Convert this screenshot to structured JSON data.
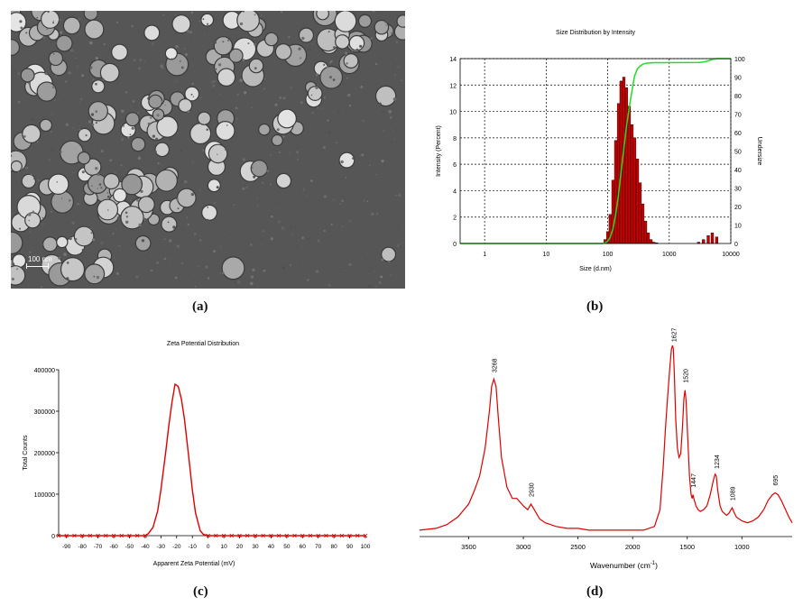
{
  "panels": {
    "a": {
      "label": "(a)",
      "scale_bar": "100 nm"
    },
    "b": {
      "label": "(b)"
    },
    "c": {
      "label": "(c)"
    },
    "d": {
      "label": "(d)"
    }
  },
  "chart_data": [
    {
      "id": "b",
      "type": "bar",
      "title": "Size Distribution by Intensity",
      "xlabel": "Size (d.nm)",
      "ylabel": "Intensity (Percent)",
      "y2label": "Undersize",
      "xscale": "log",
      "xlim": [
        0.4,
        10000
      ],
      "ylim": [
        0,
        14
      ],
      "y2lim": [
        0,
        100
      ],
      "x_ticks": [
        1,
        10,
        100,
        1000,
        10000
      ],
      "y_ticks": [
        0,
        2,
        4,
        6,
        8,
        10,
        12,
        14
      ],
      "y2_ticks": [
        0,
        10,
        20,
        30,
        40,
        50,
        60,
        70,
        80,
        90,
        100
      ],
      "grid": true,
      "bar_color": "#cc0000",
      "line_color": "#22dd22",
      "series": [
        {
          "kind": "bars",
          "x": [
            91,
            100,
            110,
            122,
            135,
            150,
            165,
            183,
            202,
            224,
            248,
            274,
            304,
            336,
            372,
            412,
            456,
            505,
            560,
            620,
            3000,
            3600,
            4300,
            5000,
            5900
          ],
          "values": [
            0.3,
            0.9,
            2.2,
            4.8,
            7.8,
            10.6,
            12.3,
            12.6,
            11.8,
            10.4,
            9.0,
            8.0,
            6.4,
            4.6,
            3.0,
            1.7,
            0.8,
            0.3,
            0.1,
            0.05,
            0.1,
            0.3,
            0.6,
            0.8,
            0.5
          ]
        },
        {
          "kind": "cumulative",
          "axis": "right",
          "x": [
            0.4,
            80,
            91,
            100,
            110,
            122,
            135,
            150,
            165,
            183,
            202,
            224,
            248,
            274,
            304,
            336,
            372,
            412,
            456,
            505,
            560,
            620,
            700,
            3000,
            3600,
            4300,
            5000,
            5900,
            7000,
            10000
          ],
          "values": [
            0,
            0,
            0.3,
            1.2,
            3.4,
            8.2,
            16.0,
            26.6,
            38.9,
            51.5,
            63.3,
            73.7,
            82.7,
            90.7,
            94.5,
            96.0,
            97.0,
            97.4,
            97.6,
            97.7,
            97.8,
            97.8,
            97.8,
            97.9,
            98.2,
            98.8,
            99.6,
            100,
            100,
            100
          ]
        }
      ]
    },
    {
      "id": "c",
      "type": "line",
      "title": "Zeta Potential Distribution",
      "xlabel": "Apparent Zeta Potential (mV)",
      "ylabel": "Total Counts",
      "xlim": [
        -95,
        100
      ],
      "ylim": [
        0,
        400000
      ],
      "x_ticks": [
        -90,
        -80,
        -70,
        -60,
        -50,
        -40,
        -30,
        -20,
        -10,
        0,
        10,
        20,
        30,
        40,
        50,
        60,
        70,
        80,
        90,
        100
      ],
      "y_ticks": [
        0,
        100000,
        200000,
        300000,
        400000
      ],
      "line_color": "#dd0000",
      "series": [
        {
          "x": [
            -95,
            -90,
            -85,
            -80,
            -75,
            -70,
            -65,
            -60,
            -55,
            -50,
            -45,
            -40,
            -38,
            -35,
            -32,
            -30,
            -27,
            -25,
            -23,
            -21,
            -19,
            -17,
            -15,
            -12,
            -10,
            -8,
            -5,
            -3,
            0,
            5,
            10,
            15,
            20,
            25,
            30,
            35,
            40,
            45,
            50,
            55,
            60,
            65,
            70,
            75,
            80,
            85,
            90,
            95,
            100
          ],
          "values": [
            0,
            0,
            0,
            0,
            0,
            0,
            0,
            0,
            0,
            0,
            0,
            0,
            5000,
            20000,
            60000,
            110000,
            200000,
            265000,
            320000,
            365000,
            360000,
            330000,
            280000,
            180000,
            110000,
            55000,
            12000,
            3000,
            0,
            0,
            0,
            0,
            0,
            0,
            0,
            0,
            0,
            0,
            0,
            0,
            0,
            0,
            0,
            0,
            0,
            0,
            0,
            0,
            0
          ]
        }
      ]
    },
    {
      "id": "d",
      "type": "line",
      "title": "",
      "xlabel": "Wavenumber (cm",
      "xlabel_sup": "-1",
      "xlabel_close": ")",
      "ylabel": "",
      "xlim": [
        3950,
        540
      ],
      "x_ticks": [
        3500,
        3000,
        2500,
        2000,
        1500,
        1000
      ],
      "line_color": "#dd0000",
      "peak_labels": [
        {
          "x": 3268,
          "text": "3268"
        },
        {
          "x": 2930,
          "text": "2930"
        },
        {
          "x": 1627,
          "text": "1627"
        },
        {
          "x": 1520,
          "text": "1520"
        },
        {
          "x": 1447,
          "text": "1447"
        },
        {
          "x": 1234,
          "text": "1234"
        },
        {
          "x": 1089,
          "text": "1089"
        },
        {
          "x": 695,
          "text": "695"
        }
      ],
      "series": [
        {
          "x": [
            3950,
            3800,
            3700,
            3600,
            3500,
            3450,
            3400,
            3350,
            3310,
            3290,
            3270,
            3250,
            3230,
            3200,
            3150,
            3100,
            3060,
            3000,
            2960,
            2930,
            2900,
            2850,
            2800,
            2700,
            2600,
            2500,
            2400,
            2300,
            2200,
            2100,
            2000,
            1900,
            1800,
            1750,
            1720,
            1700,
            1680,
            1660,
            1645,
            1635,
            1627,
            1618,
            1605,
            1590,
            1575,
            1560,
            1545,
            1530,
            1520,
            1510,
            1495,
            1480,
            1465,
            1455,
            1447,
            1440,
            1420,
            1400,
            1380,
            1350,
            1320,
            1290,
            1260,
            1245,
            1234,
            1220,
            1200,
            1180,
            1160,
            1140,
            1120,
            1100,
            1089,
            1075,
            1050,
            1000,
            950,
            900,
            850,
            800,
            760,
            720,
            695,
            670,
            640,
            600,
            570,
            540
          ],
          "values": [
            0.01,
            0.02,
            0.04,
            0.08,
            0.15,
            0.22,
            0.3,
            0.45,
            0.65,
            0.78,
            0.82,
            0.78,
            0.62,
            0.4,
            0.24,
            0.18,
            0.18,
            0.14,
            0.12,
            0.15,
            0.12,
            0.07,
            0.05,
            0.03,
            0.02,
            0.02,
            0.01,
            0.01,
            0.01,
            0.01,
            0.01,
            0.01,
            0.03,
            0.12,
            0.35,
            0.55,
            0.72,
            0.88,
            0.98,
            1.0,
            0.98,
            0.85,
            0.6,
            0.45,
            0.4,
            0.42,
            0.55,
            0.72,
            0.76,
            0.7,
            0.5,
            0.3,
            0.2,
            0.18,
            0.2,
            0.18,
            0.14,
            0.12,
            0.11,
            0.12,
            0.14,
            0.2,
            0.28,
            0.31,
            0.3,
            0.22,
            0.14,
            0.11,
            0.1,
            0.09,
            0.1,
            0.12,
            0.13,
            0.11,
            0.08,
            0.06,
            0.05,
            0.06,
            0.08,
            0.12,
            0.17,
            0.2,
            0.21,
            0.2,
            0.17,
            0.12,
            0.08,
            0.05
          ]
        }
      ]
    }
  ]
}
